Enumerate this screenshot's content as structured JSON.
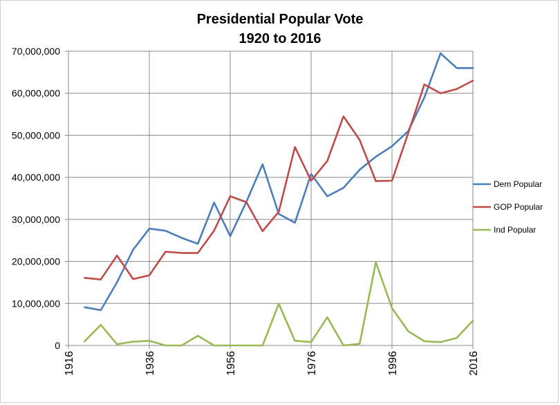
{
  "chart_data": {
    "type": "line",
    "title": "Presidential Popular Vote",
    "subtitle": "1920 to 2016",
    "xlabel": "",
    "ylabel": "",
    "xlim": [
      1916,
      2016
    ],
    "ylim": [
      0,
      70000000
    ],
    "x_ticks": [
      "1916",
      "1936",
      "1956",
      "1976",
      "1996",
      "2016"
    ],
    "y_ticks": [
      "0",
      "10,000,000",
      "20,000,000",
      "30,000,000",
      "40,000,000",
      "50,000,000",
      "60,000,000",
      "70,000,000"
    ],
    "x": [
      1920,
      1924,
      1928,
      1932,
      1936,
      1940,
      1944,
      1948,
      1952,
      1956,
      1960,
      1964,
      1968,
      1972,
      1976,
      1980,
      1984,
      1988,
      1992,
      1996,
      2000,
      2004,
      2008,
      2012,
      2016
    ],
    "grid": true,
    "legend_position": "right",
    "series": [
      {
        "name": "Dem Popular",
        "color": "#4a7ebb",
        "values": [
          9100000,
          8400000,
          15000000,
          22800000,
          27800000,
          27300000,
          25600000,
          24200000,
          34000000,
          26000000,
          34200000,
          43100000,
          31300000,
          29200000,
          40800000,
          35500000,
          37500000,
          41800000,
          44900000,
          47400000,
          51000000,
          59000000,
          69500000,
          66000000,
          66000000
        ]
      },
      {
        "name": "GOP Popular",
        "color": "#be4b48",
        "values": [
          16100000,
          15700000,
          21400000,
          15800000,
          16700000,
          22300000,
          22000000,
          22000000,
          27300000,
          35500000,
          34100000,
          27200000,
          31800000,
          47200000,
          39200000,
          43900000,
          54500000,
          48900000,
          39100000,
          39200000,
          50500000,
          62100000,
          60000000,
          61000000,
          63000000
        ]
      },
      {
        "name": "Ind Popular",
        "color": "#98b954",
        "values": [
          1000000,
          4900000,
          300000,
          900000,
          1100000,
          0,
          0,
          2300000,
          0,
          0,
          0,
          0,
          9900000,
          1100000,
          800000,
          6700000,
          0,
          400000,
          19800000,
          8900000,
          3400000,
          1000000,
          800000,
          1800000,
          5900000
        ]
      }
    ]
  }
}
